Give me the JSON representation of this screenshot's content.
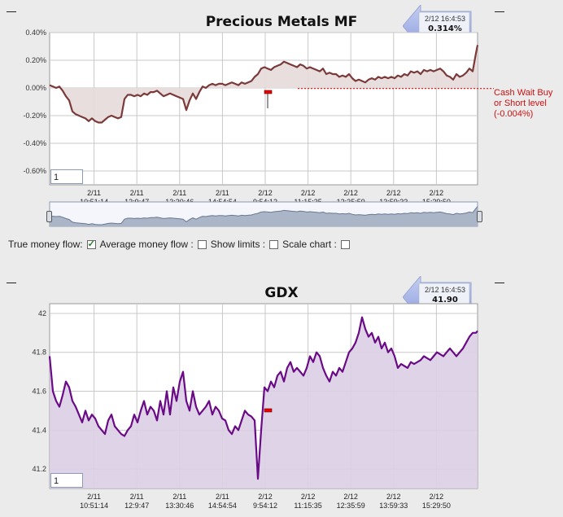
{
  "charts": [
    {
      "title": "Precious Metals MF",
      "badge": {
        "time": "2/12 16:4:53",
        "value": "0.314%"
      },
      "zoom_value": "1",
      "annotation": [
        "Cash Wait Buy",
        "or Short level",
        "(-0.004%)"
      ],
      "colors": {
        "line": "#7a3a3a",
        "fill": "#e7dada",
        "ref": "#d01010"
      }
    },
    {
      "title": "GDX",
      "badge": {
        "time": "2/12 16:4:53",
        "value": "41.90"
      },
      "zoom_value": "1",
      "colors": {
        "line": "#6a0a86",
        "fill": "#dccfe4"
      }
    }
  ],
  "options": {
    "true_money_flow": "True money flow:",
    "average_money_flow": "Average money flow :",
    "show_limits": "Show limits :",
    "scale_chart": "Scale chart :"
  },
  "chart_data": [
    {
      "type": "area",
      "title": "Precious Metals MF",
      "ylabel": "",
      "ylim": [
        -0.7,
        0.4
      ],
      "yticks": [
        "0.40%",
        "0.20%",
        "0.00%",
        "-0.20%",
        "-0.40%",
        "-0.60%"
      ],
      "ytick_values": [
        0.4,
        0.2,
        0.0,
        -0.2,
        -0.4,
        -0.6
      ],
      "xticks": [
        [
          "2/11",
          "10:51:14"
        ],
        [
          "2/11",
          "12:9:47"
        ],
        [
          "2/11",
          "13:30:46"
        ],
        [
          "2/11",
          "14:54:54"
        ],
        [
          "2/12",
          "9:54:12"
        ],
        [
          "2/12",
          "11:15:35"
        ],
        [
          "2/12",
          "12:35:59"
        ],
        [
          "2/12",
          "13:59:33"
        ],
        [
          "2/12",
          "15:29:50"
        ]
      ],
      "reference_line": -0.004,
      "x": [
        0,
        4,
        8,
        12,
        16,
        20,
        24,
        28,
        32,
        36,
        40,
        44,
        48,
        52,
        56,
        60,
        64,
        68,
        72,
        76,
        80,
        84,
        88,
        92,
        96,
        100,
        104,
        108,
        112,
        116,
        120,
        124,
        128,
        132,
        136,
        140,
        144,
        148,
        152,
        156,
        160,
        164,
        168,
        172,
        176,
        180,
        184,
        188,
        192,
        196,
        200,
        204,
        208,
        212,
        216,
        220,
        224,
        228,
        232,
        236,
        240,
        244,
        248,
        252,
        256,
        260,
        264,
        268,
        272,
        276,
        280,
        284,
        288,
        292,
        296,
        300,
        304,
        308,
        312,
        316,
        320,
        324,
        328,
        332,
        336,
        340,
        344,
        348,
        352,
        356,
        360,
        364,
        368,
        372,
        376,
        380,
        384,
        388,
        392,
        396,
        400,
        404,
        408,
        412,
        416,
        420,
        424,
        428,
        432,
        436,
        440,
        444,
        448,
        452,
        456,
        460,
        464,
        468,
        472,
        476,
        480,
        484,
        488,
        492,
        496,
        500,
        504,
        508,
        512,
        516,
        520,
        524,
        526
      ],
      "y": [
        0.02,
        0.01,
        0.0,
        0.01,
        -0.02,
        -0.06,
        -0.09,
        -0.17,
        -0.19,
        -0.2,
        -0.21,
        -0.22,
        -0.24,
        -0.22,
        -0.24,
        -0.25,
        -0.25,
        -0.23,
        -0.21,
        -0.2,
        -0.21,
        -0.22,
        -0.21,
        -0.08,
        -0.05,
        -0.05,
        -0.06,
        -0.05,
        -0.06,
        -0.04,
        -0.05,
        -0.03,
        -0.03,
        -0.02,
        -0.04,
        -0.06,
        -0.05,
        -0.04,
        -0.05,
        -0.06,
        -0.07,
        -0.08,
        -0.16,
        -0.09,
        -0.04,
        -0.08,
        -0.03,
        0.01,
        0.0,
        0.02,
        0.03,
        0.02,
        0.03,
        0.03,
        0.02,
        0.03,
        0.04,
        0.03,
        0.02,
        0.04,
        0.03,
        0.04,
        0.05,
        0.08,
        0.1,
        0.14,
        0.15,
        0.14,
        0.13,
        0.15,
        0.16,
        0.17,
        0.19,
        0.18,
        0.17,
        0.16,
        0.15,
        0.17,
        0.16,
        0.14,
        0.15,
        0.14,
        0.13,
        0.12,
        0.14,
        0.1,
        0.11,
        0.1,
        0.1,
        0.08,
        0.09,
        0.08,
        0.1,
        0.07,
        0.05,
        0.06,
        0.05,
        0.04,
        0.06,
        0.07,
        0.06,
        0.08,
        0.07,
        0.08,
        0.07,
        0.08,
        0.07,
        0.09,
        0.08,
        0.1,
        0.09,
        0.12,
        0.11,
        0.12,
        0.1,
        0.13,
        0.12,
        0.13,
        0.12,
        0.13,
        0.14,
        0.12,
        0.09,
        0.08,
        0.06,
        0.1,
        0.08,
        0.09,
        0.11,
        0.14,
        0.12,
        0.25,
        0.31
      ]
    },
    {
      "type": "area",
      "title": "GDX",
      "ylabel": "",
      "ylim": [
        41.1,
        42.05
      ],
      "yticks": [
        "42",
        "41.8",
        "41.6",
        "41.4",
        "41.2"
      ],
      "ytick_values": [
        42,
        41.8,
        41.6,
        41.4,
        41.2
      ],
      "xticks": [
        [
          "2/11",
          "10:51:14"
        ],
        [
          "2/11",
          "12:9:47"
        ],
        [
          "2/11",
          "13:30:46"
        ],
        [
          "2/11",
          "14:54:54"
        ],
        [
          "2/12",
          "9:54:12"
        ],
        [
          "2/12",
          "11:15:35"
        ],
        [
          "2/12",
          "12:35:59"
        ],
        [
          "2/12",
          "13:59:33"
        ],
        [
          "2/12",
          "15:29:50"
        ]
      ],
      "x": [
        0,
        4,
        8,
        12,
        16,
        20,
        24,
        28,
        32,
        36,
        40,
        44,
        48,
        52,
        56,
        60,
        64,
        68,
        72,
        76,
        80,
        84,
        88,
        92,
        96,
        100,
        104,
        108,
        112,
        116,
        120,
        124,
        128,
        132,
        136,
        140,
        144,
        148,
        152,
        156,
        160,
        164,
        168,
        172,
        176,
        180,
        184,
        188,
        192,
        196,
        200,
        204,
        208,
        212,
        216,
        220,
        224,
        228,
        232,
        236,
        240,
        244,
        248,
        252,
        256,
        260,
        264,
        268,
        272,
        276,
        280,
        284,
        288,
        292,
        296,
        300,
        304,
        308,
        312,
        316,
        320,
        324,
        328,
        332,
        336,
        340,
        344,
        348,
        352,
        356,
        360,
        364,
        368,
        372,
        376,
        380,
        384,
        388,
        392,
        396,
        400,
        404,
        408,
        412,
        416,
        420,
        424,
        428,
        432,
        436,
        440,
        444,
        448,
        452,
        456,
        460,
        464,
        468,
        472,
        476,
        480,
        484,
        488,
        492,
        496,
        500,
        504,
        508,
        512,
        516,
        520,
        524,
        526
      ],
      "y": [
        41.78,
        41.6,
        41.55,
        41.52,
        41.58,
        41.65,
        41.62,
        41.55,
        41.52,
        41.48,
        41.44,
        41.5,
        41.45,
        41.48,
        41.46,
        41.42,
        41.4,
        41.38,
        41.45,
        41.48,
        41.42,
        41.4,
        41.38,
        41.37,
        41.4,
        41.42,
        41.48,
        41.44,
        41.5,
        41.55,
        41.48,
        41.52,
        41.5,
        41.45,
        41.55,
        41.48,
        41.6,
        41.48,
        41.62,
        41.55,
        41.65,
        41.7,
        41.55,
        41.5,
        41.6,
        41.52,
        41.48,
        41.5,
        41.52,
        41.55,
        41.48,
        41.52,
        41.5,
        41.46,
        41.45,
        41.4,
        41.38,
        41.42,
        41.4,
        41.45,
        41.5,
        41.48,
        41.47,
        41.45,
        41.15,
        41.4,
        41.62,
        41.6,
        41.65,
        41.62,
        41.68,
        41.7,
        41.65,
        41.72,
        41.75,
        41.7,
        41.72,
        41.7,
        41.68,
        41.72,
        41.78,
        41.75,
        41.8,
        41.78,
        41.72,
        41.68,
        41.65,
        41.7,
        41.68,
        41.72,
        41.7,
        41.75,
        41.8,
        41.82,
        41.85,
        41.9,
        41.98,
        41.92,
        41.88,
        41.9,
        41.85,
        41.88,
        41.82,
        41.85,
        41.8,
        41.82,
        41.78,
        41.72,
        41.74,
        41.73,
        41.72,
        41.75,
        41.74,
        41.75,
        41.76,
        41.78,
        41.77,
        41.76,
        41.78,
        41.8,
        41.79,
        41.78,
        41.8,
        41.82,
        41.8,
        41.78,
        41.8,
        41.82,
        41.85,
        41.88,
        41.9,
        41.9,
        41.91
      ]
    }
  ]
}
